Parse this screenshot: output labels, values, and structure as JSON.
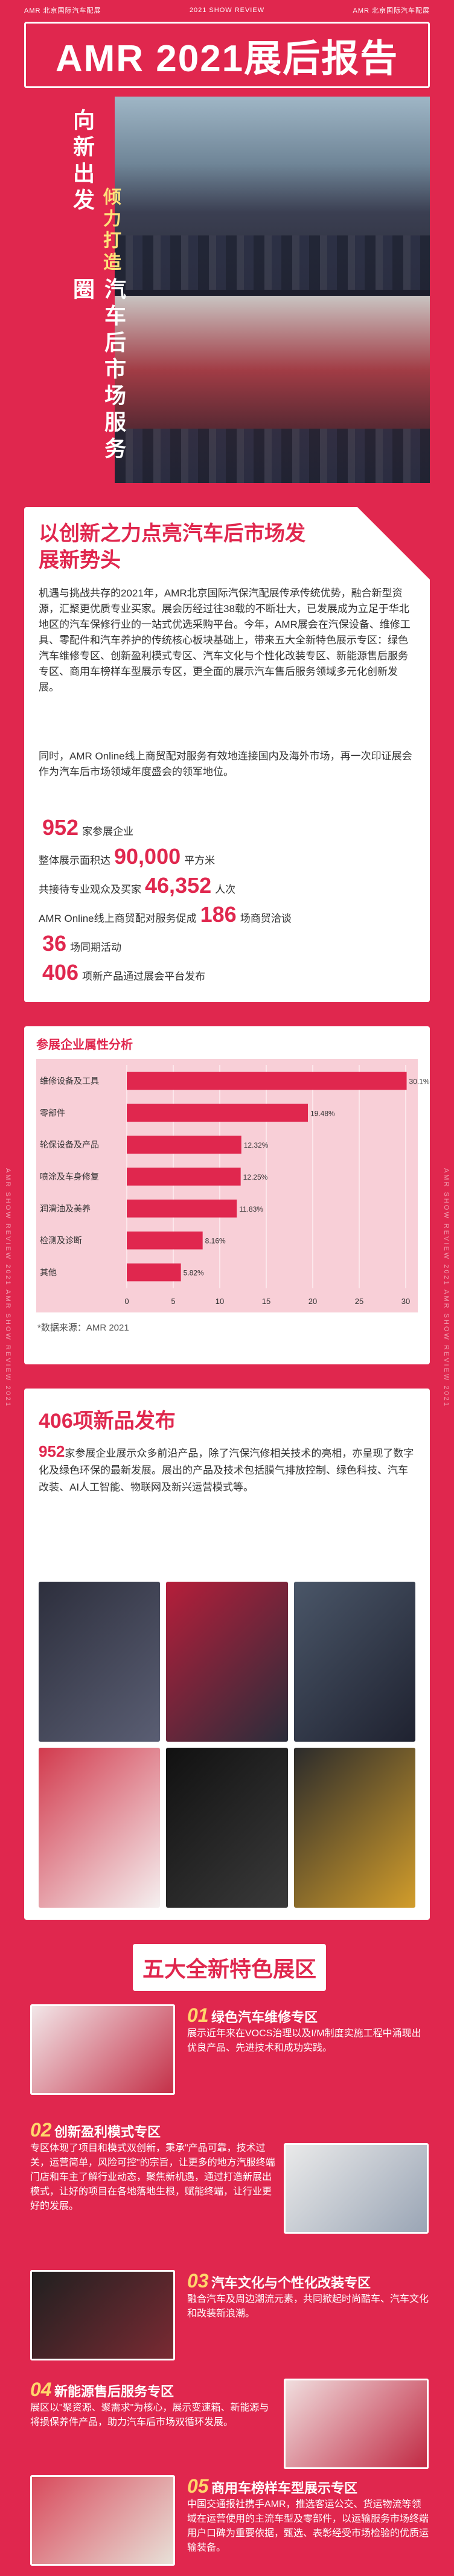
{
  "topbar": {
    "left": "AMR 北京国际汽车配展",
    "mid": "2021 SHOW REVIEW",
    "right": "AMR 北京国际汽车配展"
  },
  "side_text": "AMR SHOW REVIEW 2021 AMR SHOW REVIEW 2021",
  "hero": {
    "title": "AMR 2021展后报告",
    "vertical_1": "向新出发",
    "vertical_2": "倾力打造",
    "vertical_3": "汽车后市场服务圈"
  },
  "section1": {
    "title": "以创新之力点亮汽车后市场发展新势头",
    "para1": "机遇与挑战共存的2021年，AMR北京国际汽保汽配展传承传统优势，融合新型资源，汇聚更优质专业买家。展会历经过往38载的不断壮大，已发展成为立足于华北地区的汽车保修行业的一站式优选采购平台。今年，AMR展会在汽保设备、维修工具、零配件和汽车养护的传统核心板块基础上，带来五大全新特色展示专区：绿色汽车维修专区、创新盈利模式专区、汽车文化与个性化改装专区、新能源售后服务专区、商用车榜样车型展示专区，更全面的展示汽车售后服务领域多元化创新发展。",
    "para2": "同时，AMR Online线上商贸配对服务有效地连接国内及海外市场，再一次印证展会作为汽车后市场领域年度盛会的领军地位。",
    "stats": [
      {
        "pre": "",
        "num": "952",
        "post": "家参展企业"
      },
      {
        "pre": "整体展示面积达",
        "num": "90,000",
        "post": "平方米"
      },
      {
        "pre": "共接待专业观众及买家",
        "num": "46,352",
        "post": "人次"
      },
      {
        "pre": "AMR Online线上商贸配对服务促成",
        "num": "186",
        "post": "场商贸洽谈"
      },
      {
        "pre": "",
        "num": "36",
        "post": "场同期活动"
      },
      {
        "pre": "",
        "num": "406",
        "post": "项新产品通过展会平台发布"
      }
    ]
  },
  "chart_data": {
    "type": "bar",
    "title": "参展企业属性分析",
    "categories": [
      "维修设备及工具",
      "零部件",
      "轮保设备及产品",
      "喷涂及车身修复",
      "润滑油及美养",
      "检测及诊断",
      "其他"
    ],
    "values": [
      30.1,
      19.48,
      12.32,
      12.25,
      11.83,
      8.16,
      5.82
    ],
    "value_labels": [
      "30.1%",
      "19.48%",
      "12.32%",
      "12.25%",
      "11.83%",
      "8.16%",
      "5.82%"
    ],
    "xlim": [
      0,
      30
    ],
    "ticks": [
      0,
      5,
      10,
      15,
      20,
      25,
      30
    ],
    "note": "*数据来源：AMR 2021"
  },
  "section3": {
    "title": "406项新品发布",
    "num": "952",
    "para": "家参展企业展示众多前沿产品，除了汽保汽修相关技术的亮相，亦呈现了数字化及绿色环保的最新发展。展出的产品及技术包括膜气排放控制、绿色科技、汽车改装、AI人工智能、物联网及新兴运营模式等。"
  },
  "zones": {
    "banner": "五大全新特色展区",
    "items": [
      {
        "num": "01",
        "title": "绿色汽车维修专区",
        "desc": "展示近年来在VOCS治理以及I/M制度实施工程中涌现出优良产品、先进技术和成功实践。"
      },
      {
        "num": "02",
        "title": "创新盈利模式专区",
        "desc": "专区体现了项目和模式双创新，秉承\"产品可靠，技术过关，运营简单，风险可控\"的宗旨，让更多的地方汽服终端门店和车主了解行业动态，聚焦新机遇，通过打造新展出模式，让好的项目在各地落地生根，赋能终端，让行业更好的发展。"
      },
      {
        "num": "03",
        "title": "汽车文化与个性化改装专区",
        "desc": "融合汽车及周边潮流元素，共同掀起时尚酷车、汽车文化和改装新浪潮。"
      },
      {
        "num": "04",
        "title": "新能源售后服务专区",
        "desc": "展区以\"聚资源、聚需求\"为核心，展示变速箱、新能源与将损保养件产品，助力汽车后市场双循环发展。"
      },
      {
        "num": "05",
        "title": "商用车榜样车型展示专区",
        "desc": "中国交通报社携手AMR，推选客运公交、货运物流等领域在运营使用的主流车型及零部件，以运输服务市场终端用户口碑为重要依据，甄选、表彰经受市场检验的优质运输装备。"
      }
    ]
  }
}
